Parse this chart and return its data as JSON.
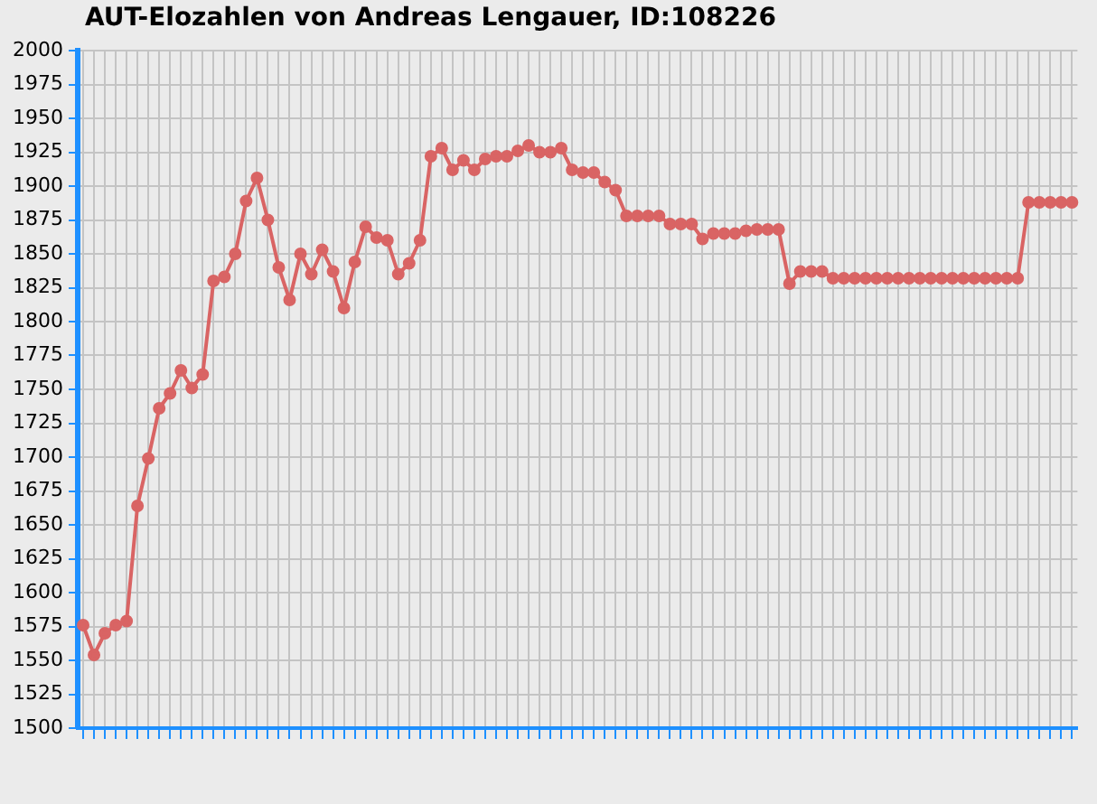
{
  "chart_data": {
    "type": "line",
    "title": "AUT-Elozahlen von Andreas Lengauer, ID:108226",
    "categories": [
      null,
      null,
      null,
      null,
      null,
      null,
      null,
      null,
      null,
      null,
      null,
      null,
      null,
      null,
      null,
      null,
      null,
      null,
      null,
      null,
      null,
      null,
      null,
      null,
      null,
      null,
      null,
      null,
      null,
      null,
      null,
      null,
      null,
      null,
      null,
      null,
      null,
      null,
      null,
      null,
      null,
      null,
      null,
      null,
      null,
      null,
      null,
      null,
      null,
      null,
      null,
      null,
      null,
      null,
      null,
      null,
      null,
      null,
      null,
      null,
      null,
      null,
      null,
      null,
      null,
      null,
      null,
      null,
      null,
      null,
      null,
      null,
      null,
      null,
      null,
      null,
      null,
      null,
      null,
      null,
      null,
      null,
      null,
      null,
      null,
      null,
      null,
      null,
      null,
      null,
      null,
      null
    ],
    "series": [
      {
        "color": "#d96464",
        "values": [
          1576,
          1554,
          1570,
          1576,
          1579,
          1664,
          1699,
          1736,
          1747,
          1764,
          1751,
          1761,
          1830,
          1833,
          1850,
          1889,
          1906,
          1875,
          1840,
          1816,
          1850,
          1835,
          1853,
          1837,
          1810,
          1844,
          1870,
          1862,
          1860,
          1835,
          1843,
          1860,
          1922,
          1928,
          1912,
          1919,
          1912,
          1920,
          1922,
          1922,
          1926,
          1930,
          1925,
          1925,
          1928,
          1912,
          1910,
          1910,
          1903,
          1897,
          1878,
          1878,
          1878,
          1878,
          1872,
          1872,
          1872,
          1861,
          1865,
          1865,
          1865,
          1867,
          1868,
          1868,
          1868,
          1828,
          1837,
          1837,
          1837,
          1832,
          1832,
          1832,
          1832,
          1832,
          1832,
          1832,
          1832,
          1832,
          1832,
          1832,
          1832,
          1832,
          1832,
          1832,
          1832,
          1832,
          1832,
          1888,
          1888,
          1888,
          1888,
          1888
        ]
      }
    ],
    "ylim": [
      1500,
      2000
    ],
    "yticks": [
      1500,
      1525,
      1550,
      1575,
      1600,
      1625,
      1650,
      1675,
      1700,
      1725,
      1750,
      1775,
      1800,
      1825,
      1850,
      1875,
      1900,
      1925,
      1950,
      1975,
      2000
    ],
    "grid": true,
    "legend": false,
    "marker": "circle",
    "line_style": "solid"
  }
}
